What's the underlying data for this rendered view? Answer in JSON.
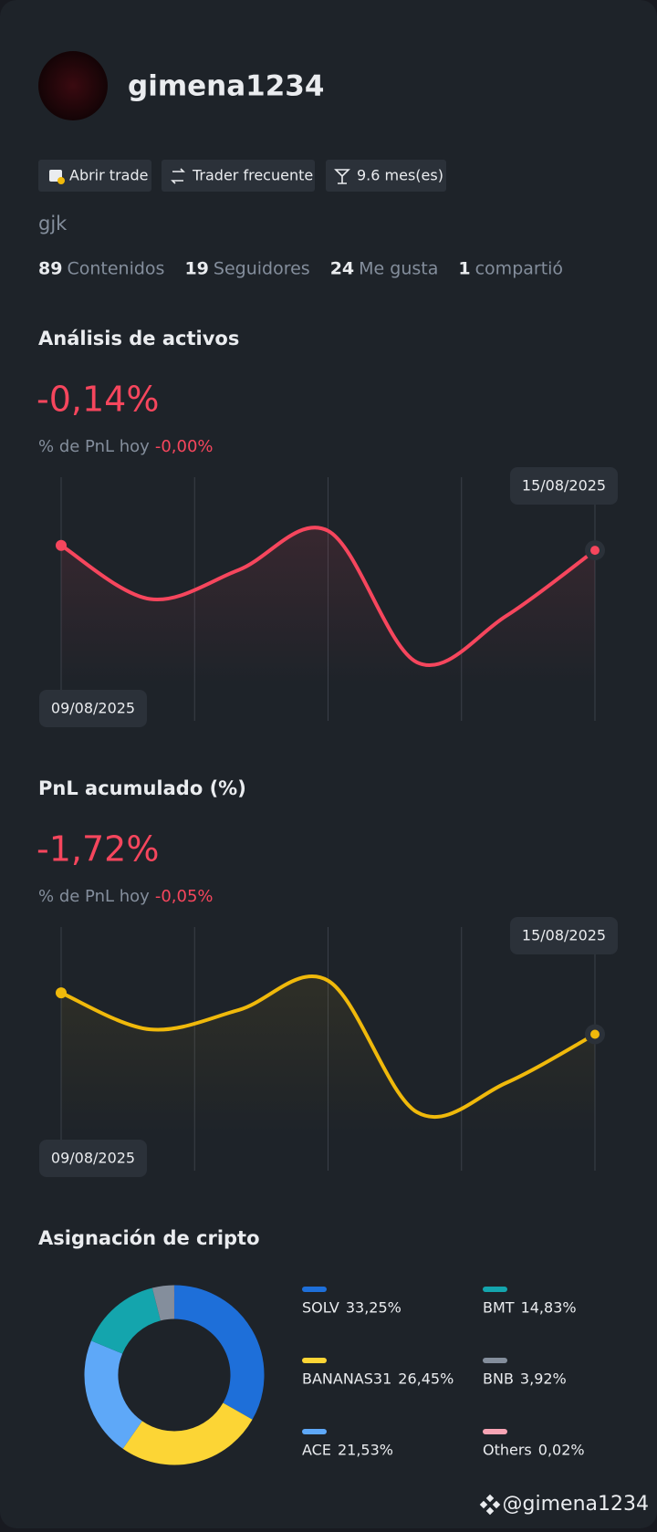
{
  "profile": {
    "username": "gimena1234",
    "badges": [
      "Abrir trade",
      "Trader frecuente",
      "9.6 mes(es)"
    ],
    "bio": "gjk",
    "stats": [
      {
        "count": "89",
        "label": "Contenidos"
      },
      {
        "count": "19",
        "label": "Seguidores"
      },
      {
        "count": "24",
        "label": "Me gusta"
      },
      {
        "count": "1",
        "label": "compartió"
      }
    ]
  },
  "chart_data": [
    {
      "type": "line",
      "title": "Análisis de activos",
      "headline": "-0,14%",
      "subtitle_label": "% de PnL hoy",
      "subtitle_value": "-0,00%",
      "categories": [
        "09/08/2025",
        null,
        null,
        null,
        null,
        null,
        "15/08/2025"
      ],
      "values": [
        72,
        50,
        62,
        78,
        24,
        43,
        70
      ],
      "ylim": [
        0,
        100
      ],
      "color": "#f6465d"
    },
    {
      "type": "line",
      "title": "PnL acumulado (%)",
      "headline": "-1,72%",
      "subtitle_label": "% de PnL hoy",
      "subtitle_value": "-0,05%",
      "categories": [
        "09/08/2025",
        null,
        null,
        null,
        null,
        null,
        "15/08/2025"
      ],
      "values": [
        73,
        58,
        66,
        78,
        24,
        36,
        56
      ],
      "ylim": [
        0,
        100
      ],
      "color": "#f0b90b"
    },
    {
      "type": "pie",
      "title": "Asignación de cripto",
      "categories": [
        "SOLV",
        "BANANAS31",
        "ACE",
        "BMT",
        "BNB",
        "Others"
      ],
      "values": [
        33.25,
        26.45,
        21.53,
        14.83,
        3.92,
        0.02
      ],
      "value_labels": [
        "33,25%",
        "26,45%",
        "21,53%",
        "14,83%",
        "3,92%",
        "0,02%"
      ],
      "colors": [
        "#1e6fd9",
        "#fcd535",
        "#5ea8f8",
        "#14a5ad",
        "#848e9c",
        "#f7a4b4"
      ]
    }
  ],
  "watermark": "@gimena1234"
}
